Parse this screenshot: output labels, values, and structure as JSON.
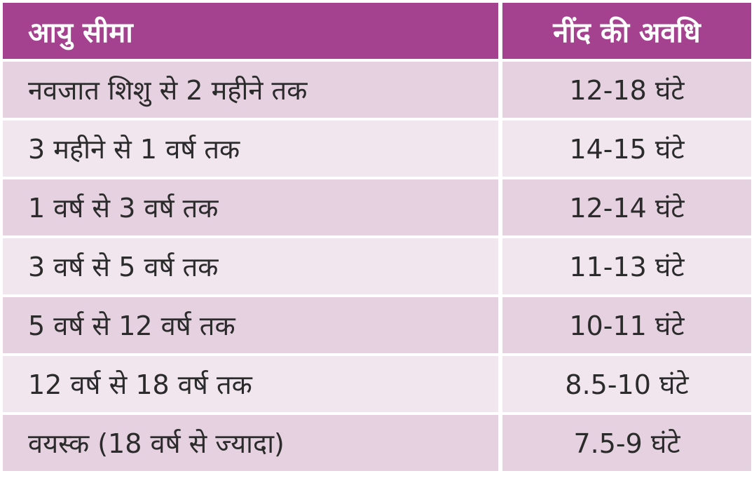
{
  "table": {
    "headers": {
      "age_range": "आयु सीमा",
      "sleep_duration": "नींद की अवधि"
    },
    "rows": [
      {
        "age_range": "नवजात शिशु से 2 महीने तक",
        "sleep_duration": "12-18 घंटे"
      },
      {
        "age_range": "3 महीने से 1 वर्ष तक",
        "sleep_duration": "14-15 घंटे"
      },
      {
        "age_range": "1 वर्ष से 3 वर्ष तक",
        "sleep_duration": "12-14 घंटे"
      },
      {
        "age_range": "3 वर्ष से 5 वर्ष तक",
        "sleep_duration": "11-13 घंटे"
      },
      {
        "age_range": "5 वर्ष से 12 वर्ष तक",
        "sleep_duration": "10-11 घंटे"
      },
      {
        "age_range": "12 वर्ष से 18 वर्ष तक",
        "sleep_duration": "8.5-10 घंटे"
      },
      {
        "age_range": "वयस्क (18 वर्ष से ज्यादा)",
        "sleep_duration": "7.5-9 घंटे"
      }
    ]
  },
  "colors": {
    "header_bg": "#a5428f",
    "header_text": "#ffffff",
    "row_dark": "#e6d1e0",
    "row_light": "#f1e6ee",
    "body_text": "#2b2b2b"
  }
}
